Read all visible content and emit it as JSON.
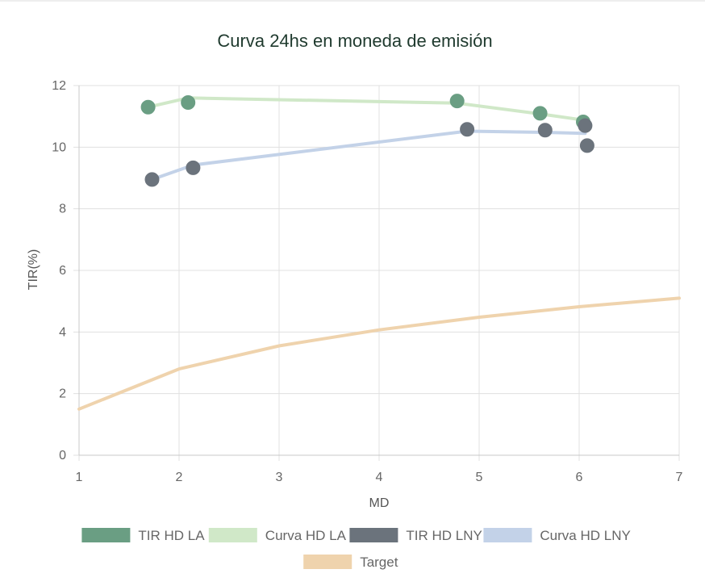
{
  "chart_data": {
    "type": "scatter",
    "title": "Curva 24hs en moneda de emisión",
    "xlabel": "MD",
    "ylabel": "TIR(%)",
    "xlim": [
      1,
      7
    ],
    "ylim": [
      0,
      12
    ],
    "x_ticks": [
      "1",
      "2",
      "3",
      "4",
      "5",
      "6",
      "7"
    ],
    "y_ticks": [
      "0",
      "2",
      "4",
      "6",
      "8",
      "10",
      "12"
    ],
    "grid": true,
    "legend_position": "bottom",
    "series": [
      {
        "name": "TIR HD LA",
        "kind": "points",
        "color": "#6a9e83",
        "points": [
          [
            1.69,
            11.3
          ],
          [
            2.09,
            11.45
          ],
          [
            4.78,
            11.5
          ],
          [
            5.61,
            11.1
          ],
          [
            6.04,
            10.82
          ]
        ]
      },
      {
        "name": "Curva HD LA",
        "kind": "line",
        "color": "#d0e8c8",
        "points": [
          [
            1.69,
            11.3
          ],
          [
            2.09,
            11.6
          ],
          [
            4.78,
            11.43
          ],
          [
            5.61,
            11.08
          ],
          [
            6.04,
            10.88
          ]
        ]
      },
      {
        "name": "TIR HD LNY",
        "kind": "points",
        "color": "#6b737c",
        "points": [
          [
            1.73,
            8.95
          ],
          [
            2.14,
            9.33
          ],
          [
            4.88,
            10.58
          ],
          [
            5.66,
            10.55
          ],
          [
            6.06,
            10.7
          ],
          [
            6.08,
            10.05
          ]
        ]
      },
      {
        "name": "Curva HD LNY",
        "kind": "line",
        "color": "#c3d2e8",
        "points": [
          [
            1.73,
            8.95
          ],
          [
            2.14,
            9.42
          ],
          [
            4.88,
            10.52
          ],
          [
            5.66,
            10.48
          ],
          [
            6.06,
            10.45
          ]
        ]
      },
      {
        "name": "Target",
        "kind": "line",
        "color": "#efd3ad",
        "points": [
          [
            1.0,
            1.5
          ],
          [
            2.0,
            2.8
          ],
          [
            3.0,
            3.55
          ],
          [
            4.0,
            4.07
          ],
          [
            5.0,
            4.48
          ],
          [
            6.0,
            4.82
          ],
          [
            7.0,
            5.1
          ]
        ]
      }
    ]
  }
}
